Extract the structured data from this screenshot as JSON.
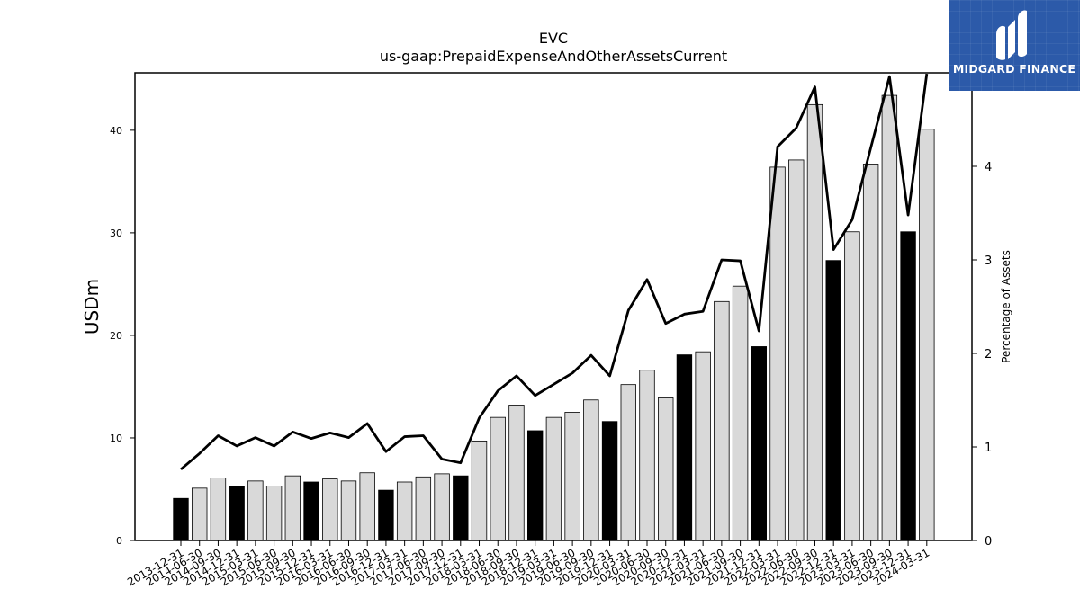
{
  "chart_data": {
    "type": "bar",
    "title": "EVC",
    "subtitle": "us-gaap:PrepaidExpenseAndOtherAssetsCurrent",
    "ylabel": "USDm",
    "y2label": "Percentage of Assets",
    "ylim": [
      0,
      45.6
    ],
    "y2lim": [
      0,
      5.0
    ],
    "yticks": [
      0,
      10,
      20,
      30,
      40
    ],
    "y2ticks": [
      0,
      1,
      2,
      3,
      4,
      5
    ],
    "grid": false,
    "categories": [
      "2013-12-31",
      "2014-06-30",
      "2014-09-30",
      "2014-12-31",
      "2015-03-31",
      "2015-06-30",
      "2015-09-30",
      "2015-12-31",
      "2016-03-31",
      "2016-06-30",
      "2016-09-30",
      "2016-12-31",
      "2017-03-31",
      "2017-06-30",
      "2017-09-30",
      "2017-12-31",
      "2018-03-31",
      "2018-06-30",
      "2018-09-30",
      "2018-12-31",
      "2019-03-31",
      "2019-06-30",
      "2019-09-30",
      "2019-12-31",
      "2020-03-31",
      "2020-06-30",
      "2020-09-30",
      "2020-12-31",
      "2021-03-31",
      "2021-06-30",
      "2021-09-30",
      "2021-12-31",
      "2022-03-31",
      "2022-06-30",
      "2022-09-30",
      "2022-12-31",
      "2023-03-31",
      "2023-06-30",
      "2023-09-30",
      "2023-12-31",
      "2024-03-31"
    ],
    "series": [
      {
        "axis": "left",
        "kind": "bar",
        "values": [
          4.1,
          5.1,
          6.1,
          5.3,
          5.8,
          5.3,
          6.3,
          5.7,
          6.0,
          5.8,
          6.6,
          4.9,
          5.7,
          6.2,
          6.5,
          6.3,
          9.7,
          12.0,
          13.2,
          10.7,
          12.0,
          12.5,
          13.7,
          11.6,
          15.2,
          16.6,
          13.9,
          18.1,
          18.4,
          23.3,
          24.8,
          18.9,
          36.4,
          37.1,
          42.5,
          27.3,
          30.1,
          36.7,
          43.4,
          30.1,
          40.1
        ],
        "year_end": [
          true,
          false,
          false,
          true,
          false,
          false,
          false,
          true,
          false,
          false,
          false,
          true,
          false,
          false,
          false,
          true,
          false,
          false,
          false,
          true,
          false,
          false,
          false,
          true,
          false,
          false,
          false,
          true,
          false,
          false,
          false,
          true,
          false,
          false,
          false,
          true,
          false,
          false,
          false,
          true,
          false
        ],
        "colors": {
          "year_end": "#000000",
          "quarter": "#d9d9d9",
          "edge": "#000000"
        }
      },
      {
        "axis": "right",
        "kind": "line",
        "color": "#000000",
        "values": [
          0.76,
          0.93,
          1.12,
          1.01,
          1.1,
          1.01,
          1.16,
          1.09,
          1.15,
          1.1,
          1.25,
          0.95,
          1.11,
          1.12,
          0.87,
          0.83,
          1.31,
          1.6,
          1.76,
          1.55,
          1.67,
          1.79,
          1.98,
          1.76,
          2.46,
          2.79,
          2.32,
          2.42,
          2.45,
          3.0,
          2.99,
          2.24,
          4.21,
          4.41,
          4.85,
          3.11,
          3.43,
          4.2,
          4.96,
          3.48,
          4.99
        ]
      }
    ]
  },
  "logo": {
    "text": "MIDGARD FINANCE",
    "bg_color": "#2c5aa9"
  }
}
